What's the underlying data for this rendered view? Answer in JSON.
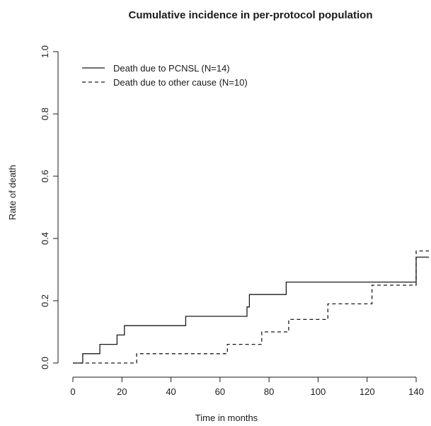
{
  "chart_data": {
    "type": "line",
    "title": "Cumulative incidence in per-protocol population",
    "xlabel": "Time in months",
    "ylabel": "Rate of death",
    "xlim": [
      0,
      146
    ],
    "ylim": [
      0,
      1.0
    ],
    "x_ticks": [
      "0",
      "20",
      "40",
      "60",
      "80",
      "100",
      "120",
      "140"
    ],
    "y_ticks": [
      "0.0",
      "0.2",
      "0.4",
      "0.6",
      "0.8",
      "1.0"
    ],
    "x_tick_values": [
      0,
      20,
      40,
      60,
      80,
      100,
      120,
      140
    ],
    "y_tick_values": [
      0,
      0.2,
      0.4,
      0.6,
      0.8,
      1.0
    ],
    "legend_position": "top-left",
    "step": true,
    "series": [
      {
        "name": "Death due to PCNSL (N=14)",
        "line_style": "solid",
        "color": "#1a1a1a",
        "x": [
          0,
          4,
          4,
          11,
          11,
          18,
          18,
          21,
          21,
          46,
          46,
          71,
          71,
          72,
          72,
          87,
          87,
          140,
          140,
          146
        ],
        "y": [
          0,
          0,
          0.03,
          0.03,
          0.06,
          0.06,
          0.09,
          0.09,
          0.12,
          0.12,
          0.15,
          0.15,
          0.18,
          0.18,
          0.22,
          0.22,
          0.26,
          0.26,
          0.34,
          0.34
        ]
      },
      {
        "name": "Death due to other cause (N=10)",
        "line_style": "dashed",
        "color": "#1a1a1a",
        "x": [
          0,
          26,
          26,
          63,
          63,
          77,
          77,
          88,
          88,
          104,
          104,
          122,
          122,
          140,
          140,
          146
        ],
        "y": [
          0,
          0,
          0.03,
          0.03,
          0.06,
          0.06,
          0.1,
          0.1,
          0.14,
          0.14,
          0.19,
          0.19,
          0.25,
          0.25,
          0.36,
          0.36
        ]
      }
    ]
  }
}
